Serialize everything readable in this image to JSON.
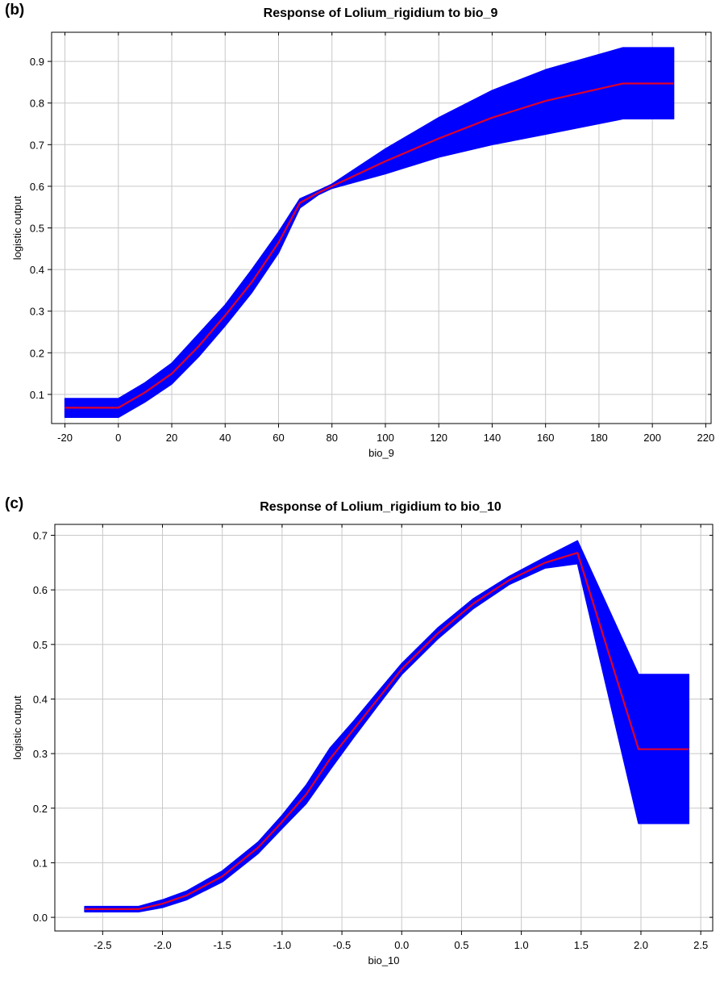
{
  "chart_data": [
    {
      "type": "area",
      "panel_label": "(b)",
      "title": "Response of Lolium_rigidium to bio_9",
      "xlabel": "bio_9",
      "ylabel": "logistic output",
      "xlim": [
        -25,
        222
      ],
      "ylim": [
        0.03,
        0.97
      ],
      "xticks": [
        -20,
        0,
        20,
        40,
        60,
        80,
        100,
        120,
        140,
        160,
        180,
        200,
        220
      ],
      "xtick_labels": [
        "-20",
        "0",
        "20",
        "40",
        "60",
        "80",
        "100",
        "120",
        "140",
        "160",
        "180",
        "200",
        "220"
      ],
      "yticks": [
        0.1,
        0.2,
        0.3,
        0.4,
        0.5,
        0.6,
        0.7,
        0.8,
        0.9
      ],
      "ytick_labels": [
        "0.1",
        "0.2",
        "0.3",
        "0.4",
        "0.5",
        "0.6",
        "0.7",
        "0.8",
        "0.9"
      ],
      "grid": true,
      "band_color": "#0000ff",
      "line_color": "#e0002a",
      "series": [
        {
          "x": [
            -20,
            0,
            10,
            20,
            30,
            40,
            50,
            60,
            68,
            75,
            80,
            100,
            120,
            140,
            160,
            189,
            208
          ],
          "mean": [
            0.068,
            0.068,
            0.105,
            0.15,
            0.215,
            0.29,
            0.37,
            0.465,
            0.56,
            0.585,
            0.6,
            0.66,
            0.715,
            0.765,
            0.805,
            0.847,
            0.847
          ],
          "upper": [
            0.09,
            0.09,
            0.128,
            0.175,
            0.245,
            0.315,
            0.4,
            0.49,
            0.57,
            0.59,
            0.605,
            0.69,
            0.765,
            0.83,
            0.88,
            0.933,
            0.933
          ],
          "lower": [
            0.045,
            0.045,
            0.082,
            0.125,
            0.19,
            0.265,
            0.345,
            0.44,
            0.548,
            0.58,
            0.595,
            0.63,
            0.67,
            0.7,
            0.725,
            0.762,
            0.762
          ]
        }
      ]
    },
    {
      "type": "area",
      "panel_label": "(c)",
      "title": "Response of Lolium_rigidium to bio_10",
      "xlabel": "bio_10",
      "ylabel": "logistic output",
      "xlim": [
        -2.9,
        2.6
      ],
      "ylim": [
        -0.025,
        0.72
      ],
      "xticks": [
        -2.5,
        -2.0,
        -1.5,
        -1.0,
        -0.5,
        0.0,
        0.5,
        1.0,
        1.5,
        2.0,
        2.5
      ],
      "xtick_labels": [
        "-2.5",
        "-2.0",
        "-1.5",
        "-1.0",
        "-0.5",
        "0.0",
        "0.5",
        "1.0",
        "1.5",
        "2.0",
        "2.5"
      ],
      "yticks": [
        0.0,
        0.1,
        0.2,
        0.3,
        0.4,
        0.5,
        0.6,
        0.7
      ],
      "ytick_labels": [
        "0.0",
        "0.1",
        "0.2",
        "0.3",
        "0.4",
        "0.5",
        "0.6",
        "0.7"
      ],
      "grid": true,
      "band_color": "#0000ff",
      "line_color": "#e0002a",
      "series": [
        {
          "x": [
            -2.65,
            -2.2,
            -2.0,
            -1.8,
            -1.5,
            -1.2,
            -1.0,
            -0.8,
            -0.6,
            -0.4,
            -0.2,
            0.0,
            0.3,
            0.6,
            0.9,
            1.2,
            1.47,
            1.98,
            2.4
          ],
          "mean": [
            0.015,
            0.015,
            0.025,
            0.04,
            0.075,
            0.128,
            0.175,
            0.225,
            0.29,
            0.345,
            0.4,
            0.455,
            0.52,
            0.575,
            0.618,
            0.65,
            0.668,
            0.308,
            0.308
          ],
          "upper": [
            0.02,
            0.02,
            0.032,
            0.048,
            0.085,
            0.138,
            0.187,
            0.242,
            0.31,
            0.36,
            0.413,
            0.465,
            0.53,
            0.584,
            0.625,
            0.66,
            0.69,
            0.445,
            0.445
          ],
          "lower": [
            0.01,
            0.01,
            0.018,
            0.032,
            0.065,
            0.117,
            0.163,
            0.208,
            0.27,
            0.33,
            0.388,
            0.445,
            0.51,
            0.566,
            0.61,
            0.64,
            0.648,
            0.172,
            0.172
          ]
        }
      ]
    }
  ]
}
